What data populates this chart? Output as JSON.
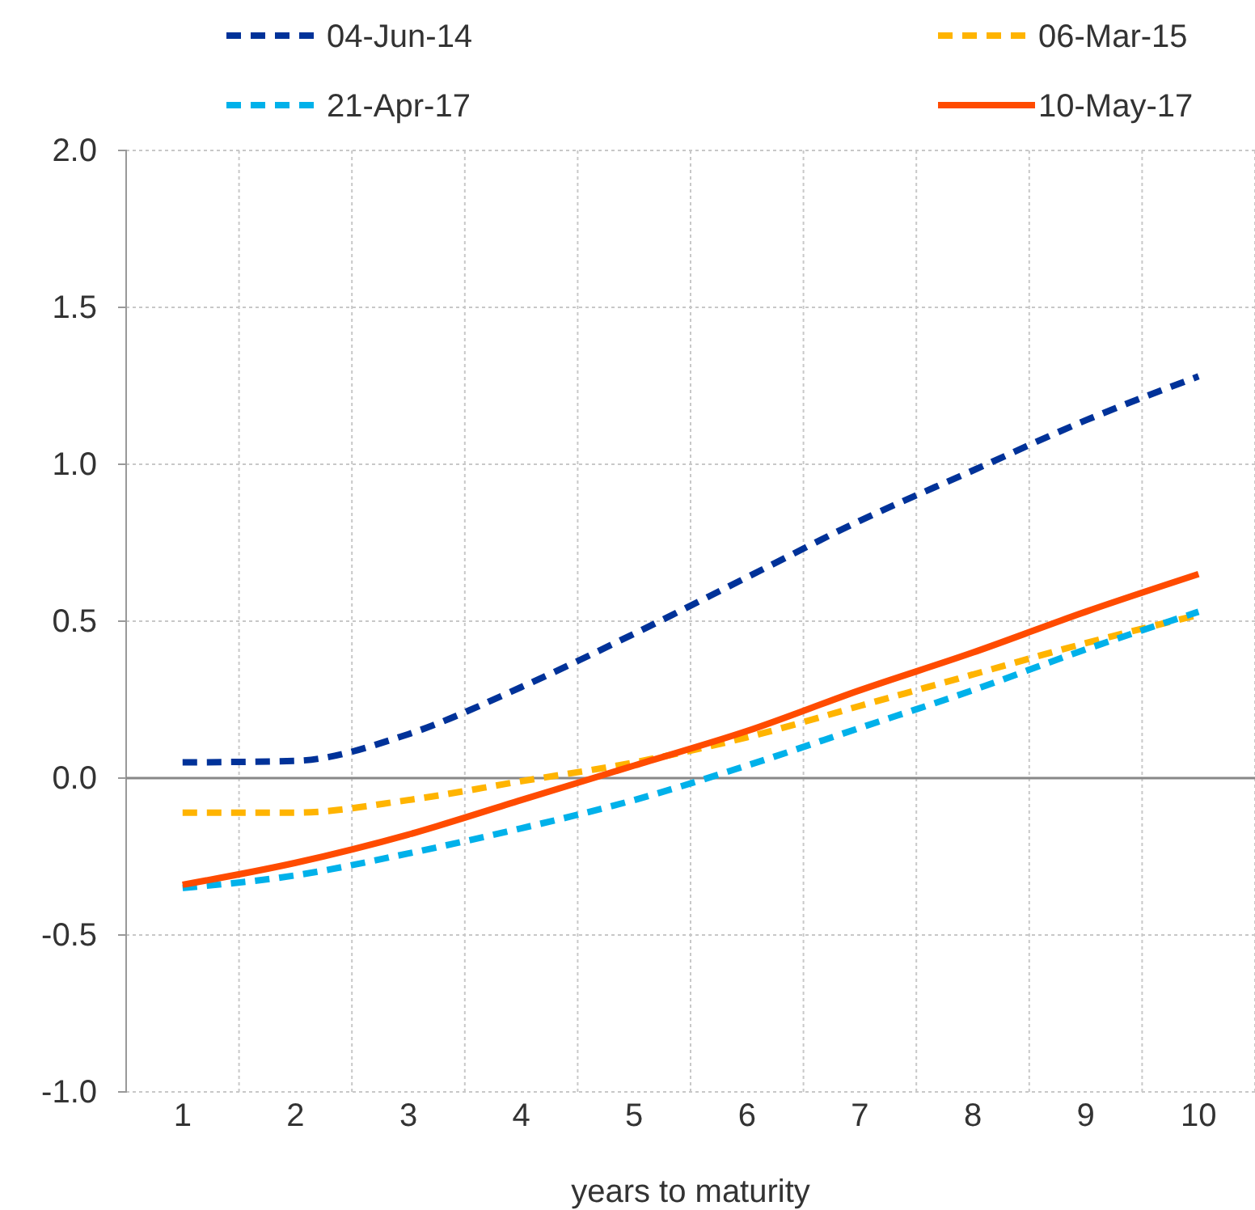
{
  "chart_data": {
    "type": "line",
    "xlabel": "years to maturity",
    "categories": [
      "1",
      "2",
      "3",
      "4",
      "5",
      "6",
      "7",
      "8",
      "9",
      "10"
    ],
    "ylim": [
      -1.0,
      2.0
    ],
    "yticks": [
      {
        "value": -1,
        "label": "-1.0"
      },
      {
        "value": -0.5,
        "label": "-0.5"
      },
      {
        "value": 0,
        "label": "0.0"
      },
      {
        "value": 0.5,
        "label": "0.5"
      },
      {
        "value": 1,
        "label": "1.0"
      },
      {
        "value": 1.5,
        "label": "1.5"
      },
      {
        "value": 2,
        "label": "2.0"
      }
    ],
    "grid": true,
    "legend": "top",
    "series": [
      {
        "name": "04-Jun-14",
        "color": "#003299",
        "line_style": "dashed",
        "values": [
          0.05,
          0.055,
          0.14,
          0.29,
          0.46,
          0.64,
          0.82,
          0.98,
          1.14,
          1.28
        ]
      },
      {
        "name": "06-Mar-15",
        "color": "#ffb400",
        "line_style": "dashed",
        "values": [
          -0.11,
          -0.11,
          -0.07,
          -0.01,
          0.05,
          0.13,
          0.23,
          0.33,
          0.43,
          0.52
        ]
      },
      {
        "name": "21-Apr-17",
        "color": "#00b1ea",
        "line_style": "dashed",
        "values": [
          -0.35,
          -0.31,
          -0.24,
          -0.16,
          -0.07,
          0.04,
          0.16,
          0.28,
          0.41,
          0.53
        ]
      },
      {
        "name": "10-May-17",
        "color": "#ff4b00",
        "line_style": "solid",
        "values": [
          -0.34,
          -0.27,
          -0.18,
          -0.07,
          0.04,
          0.15,
          0.28,
          0.4,
          0.53,
          0.65
        ]
      }
    ]
  }
}
